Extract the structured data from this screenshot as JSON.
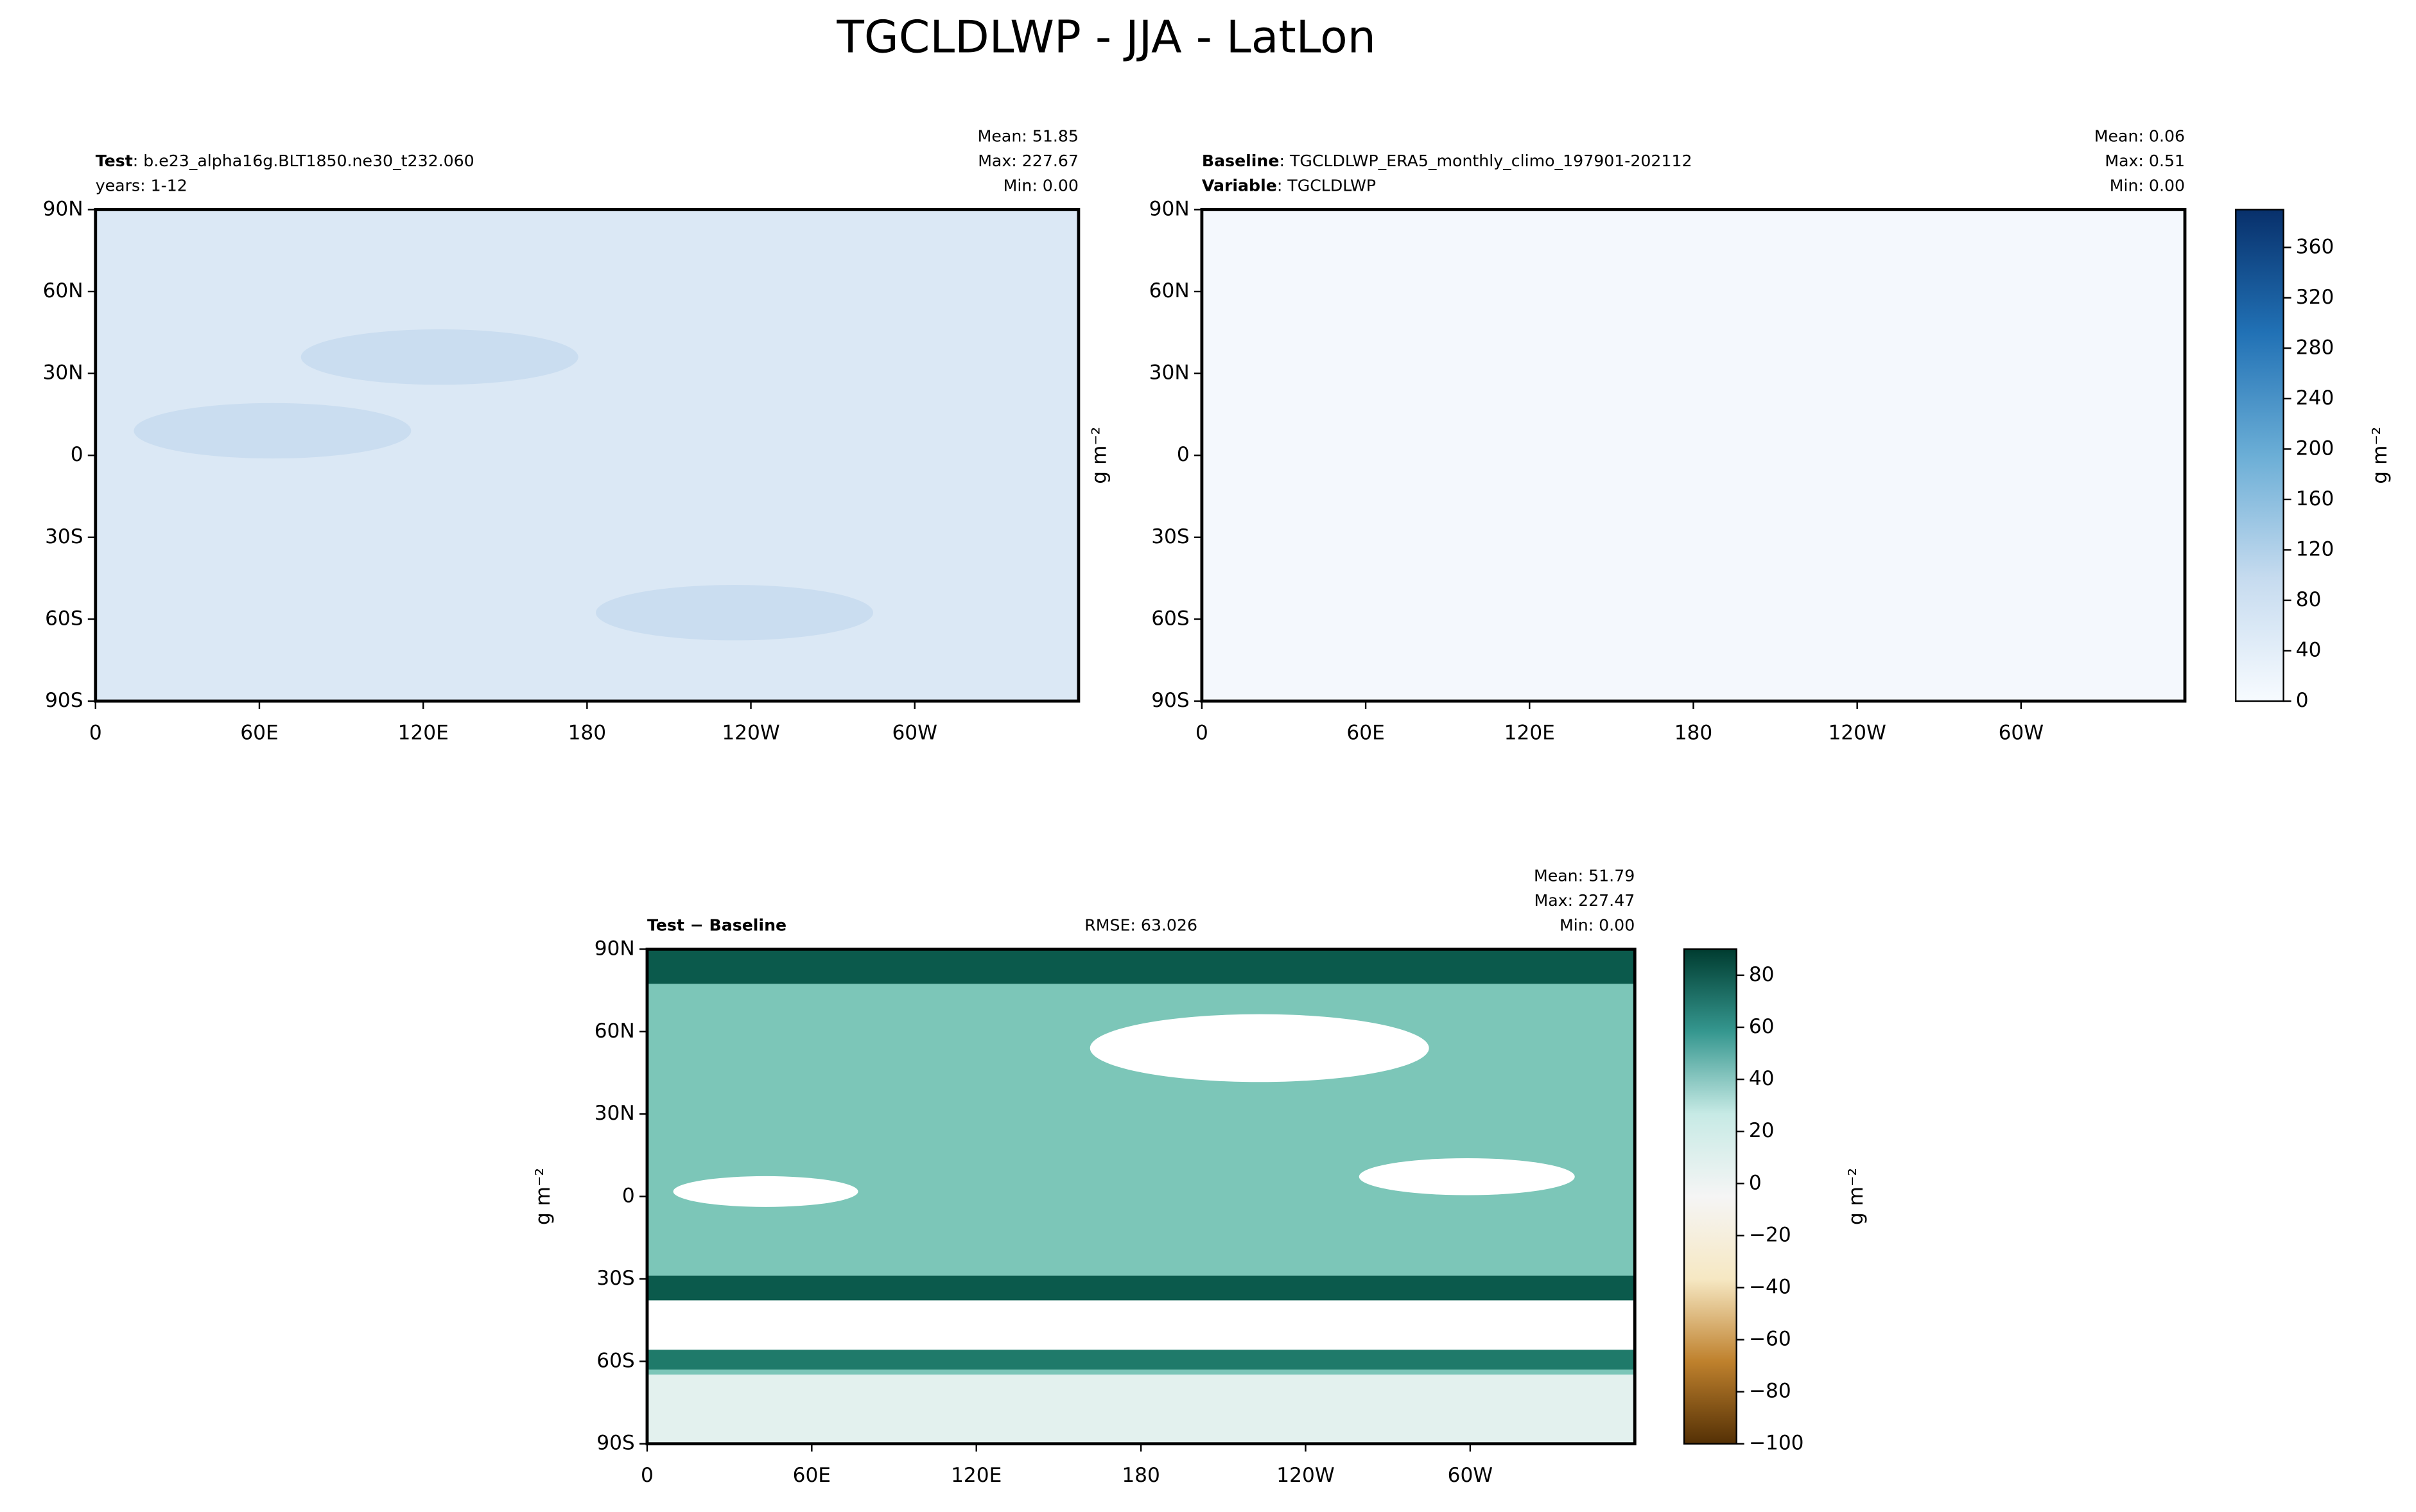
{
  "title": "TGCLDLWP - JJA - LatLon",
  "chart_data": [
    {
      "type": "map",
      "lines": [
        {
          "bold": "Test",
          "text": ": b.e23_alpha16g.BLT1850.ne30_t232.060"
        },
        {
          "text": "years: 1-12"
        }
      ],
      "stats": [
        "Mean: 51.85",
        "Max: 227.67",
        "Min:  0.00"
      ],
      "fill": "#dbe8f5",
      "xlim": [
        0,
        360
      ],
      "ylim": [
        -90,
        90
      ],
      "xticks": [
        0,
        {
          "value": 60,
          "label": "60E"
        },
        {
          "value": 120,
          "label": "120E"
        },
        180,
        {
          "value": 240,
          "label": "120W"
        },
        {
          "value": 300,
          "label": "60W"
        }
      ],
      "yticks": [
        {
          "value": 90,
          "label": "90N"
        },
        {
          "value": 60,
          "label": "60N"
        },
        {
          "value": 30,
          "label": "30N"
        },
        0,
        {
          "value": -30,
          "label": "30S"
        },
        {
          "value": -60,
          "label": "60S"
        },
        {
          "value": -90,
          "label": "90S"
        }
      ]
    },
    {
      "type": "map",
      "lines": [
        {
          "bold": "Baseline",
          "text": ": TGCLDLWP_ERA5_monthly_climo_197901-202112"
        },
        {
          "bold": "Variable",
          "text": ": TGCLDLWP"
        }
      ],
      "stats": [
        "Mean:  0.06",
        "Max:  0.51",
        "Min:  0.00"
      ],
      "fill": "#f4f8fd",
      "units": "g m⁻²",
      "xlim": [
        0,
        360
      ],
      "ylim": [
        -90,
        90
      ],
      "xticks": [
        0,
        {
          "value": 60,
          "label": "60E"
        },
        {
          "value": 120,
          "label": "120E"
        },
        180,
        {
          "value": 240,
          "label": "120W"
        },
        {
          "value": 300,
          "label": "60W"
        }
      ],
      "yticks": [
        {
          "value": 90,
          "label": "90N"
        },
        {
          "value": 60,
          "label": "60N"
        },
        {
          "value": 30,
          "label": "30N"
        },
        0,
        {
          "value": -30,
          "label": "30S"
        },
        {
          "value": -60,
          "label": "60S"
        },
        {
          "value": -90,
          "label": "90S"
        }
      ]
    },
    {
      "type": "colorbar",
      "colors": [
        "#f7fbff",
        "#c6dbef",
        "#6baed6",
        "#2171b5",
        "#08306b"
      ],
      "units": "g m⁻²",
      "ylim": [
        0,
        390
      ],
      "yticks": [
        0,
        40,
        80,
        120,
        160,
        200,
        240,
        280,
        320,
        360
      ]
    },
    {
      "type": "map",
      "lines": [
        {
          "bold": "Test − Baseline"
        }
      ],
      "rmse": "RMSE: 63.026",
      "stats": [
        "Mean: 51.79",
        "Max: 227.47",
        "Min:  0.00"
      ],
      "fill": "#7cc6b8",
      "units": "g m⁻²",
      "xlim": [
        0,
        360
      ],
      "ylim": [
        -90,
        90
      ],
      "xticks": [
        0,
        {
          "value": 60,
          "label": "60E"
        },
        {
          "value": 120,
          "label": "120E"
        },
        180,
        {
          "value": 240,
          "label": "120W"
        },
        {
          "value": 300,
          "label": "60W"
        }
      ],
      "yticks": [
        {
          "value": 90,
          "label": "90N"
        },
        {
          "value": 60,
          "label": "60N"
        },
        {
          "value": 30,
          "label": "30N"
        },
        0,
        {
          "value": -30,
          "label": "30S"
        },
        {
          "value": -60,
          "label": "60S"
        },
        {
          "value": -90,
          "label": "90S"
        }
      ]
    },
    {
      "type": "colorbar",
      "colors": [
        "#543005",
        "#bf812d",
        "#f6e8c3",
        "#f5f5f5",
        "#c7eae5",
        "#35978f",
        "#003c30"
      ],
      "units": "g m⁻²",
      "ylim": [
        -100,
        90
      ],
      "yticks": [
        {
          "value": -100,
          "label": "−100"
        },
        {
          "value": -80,
          "label": "−80"
        },
        {
          "value": -60,
          "label": "−60"
        },
        {
          "value": -40,
          "label": "−40"
        },
        {
          "value": -20,
          "label": "−20"
        },
        0,
        20,
        40,
        60,
        80
      ]
    }
  ]
}
